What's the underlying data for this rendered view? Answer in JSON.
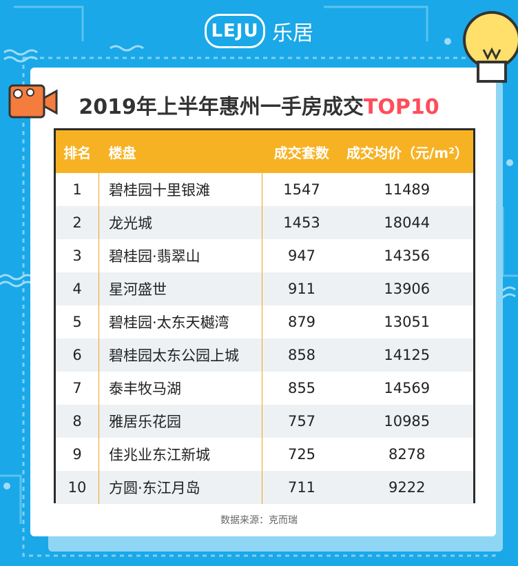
{
  "logo": {
    "badge": "LEJU",
    "text": "乐居"
  },
  "title": {
    "main": "2019年上半年惠州一手房成交",
    "highlight": "TOP10"
  },
  "table": {
    "headers": [
      "排名",
      "楼盘",
      "成交套数",
      "成交均价（元/m²）"
    ],
    "rows": [
      [
        "1",
        "碧桂园十里银滩",
        "1547",
        "11489"
      ],
      [
        "2",
        "龙光城",
        "1453",
        "18044"
      ],
      [
        "3",
        "碧桂园·翡翠山",
        "947",
        "14356"
      ],
      [
        "4",
        "星河盛世",
        "911",
        "13906"
      ],
      [
        "5",
        "碧桂园·太东天樾湾",
        "879",
        "13051"
      ],
      [
        "6",
        "碧桂园太东公园上城",
        "858",
        "14125"
      ],
      [
        "7",
        "泰丰牧马湖",
        "855",
        "14569"
      ],
      [
        "8",
        "雅居乐花园",
        "757",
        "10985"
      ],
      [
        "9",
        "佳兆业东江新城",
        "725",
        "8278"
      ],
      [
        "10",
        "方圆·东江月岛",
        "711",
        "9222"
      ]
    ]
  },
  "source": "数据来源：克而瑞",
  "colors": {
    "background": "#1aa8e8",
    "header": "#f7b224",
    "highlight": "#ff4d5a"
  },
  "icons": [
    "camera-icon",
    "lightbulb-icon"
  ]
}
